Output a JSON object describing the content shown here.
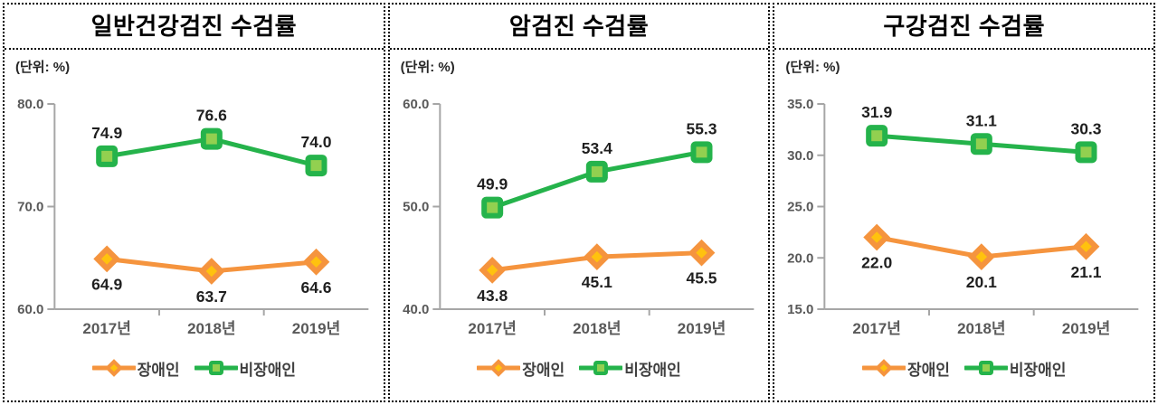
{
  "colors": {
    "axis": "#A6A6A6",
    "tick_label": "#595959",
    "x_label": "#595959",
    "value_label": "#1F1F1F",
    "legend_text": "#404040",
    "border": "#000000",
    "background": "#FFFFFF"
  },
  "chart_data": [
    {
      "type": "line",
      "title": "일반건강검진 수검률",
      "unit_label": "(단위: %)",
      "categories": [
        "2017년",
        "2018년",
        "2019년"
      ],
      "ylim": [
        60,
        80
      ],
      "ytick_labels": [
        "80.0",
        "70.0",
        "60.0"
      ],
      "grid": false,
      "legend_position": "bottom",
      "series": [
        {
          "name": "장애인",
          "marker": "diamond",
          "color": "#F5943E",
          "inner_color": "#FFC20E",
          "values": [
            64.9,
            63.7,
            64.6
          ],
          "label_position": "below"
        },
        {
          "name": "비장애인",
          "marker": "square",
          "color": "#25B34B",
          "inner_color": "#92D050",
          "values": [
            74.9,
            76.6,
            74.0
          ],
          "label_position": "above"
        }
      ]
    },
    {
      "type": "line",
      "title": "암검진 수검률",
      "unit_label": "(단위: %)",
      "categories": [
        "2017년",
        "2018년",
        "2019년"
      ],
      "ylim": [
        40,
        60
      ],
      "ytick_labels": [
        "60.0",
        "50.0",
        "40.0"
      ],
      "grid": false,
      "legend_position": "bottom",
      "series": [
        {
          "name": "장애인",
          "marker": "diamond",
          "color": "#F5943E",
          "inner_color": "#FFC20E",
          "values": [
            43.8,
            45.1,
            45.5
          ],
          "label_position": "below"
        },
        {
          "name": "비장애인",
          "marker": "square",
          "color": "#25B34B",
          "inner_color": "#92D050",
          "values": [
            49.9,
            53.4,
            55.3
          ],
          "label_position": "above"
        }
      ]
    },
    {
      "type": "line",
      "title": "구강검진 수검률",
      "unit_label": "(단위: %)",
      "categories": [
        "2017년",
        "2018년",
        "2019년"
      ],
      "ylim": [
        15,
        35
      ],
      "ytick_labels": [
        "35.0",
        "30.0",
        "25.0",
        "20.0",
        "15.0"
      ],
      "grid": false,
      "legend_position": "bottom",
      "series": [
        {
          "name": "장애인",
          "marker": "diamond",
          "color": "#F5943E",
          "inner_color": "#FFC20E",
          "values": [
            22.0,
            20.1,
            21.1
          ],
          "label_position": "below"
        },
        {
          "name": "비장애인",
          "marker": "square",
          "color": "#25B34B",
          "inner_color": "#92D050",
          "values": [
            31.9,
            31.1,
            30.3
          ],
          "label_position": "above"
        }
      ]
    }
  ]
}
